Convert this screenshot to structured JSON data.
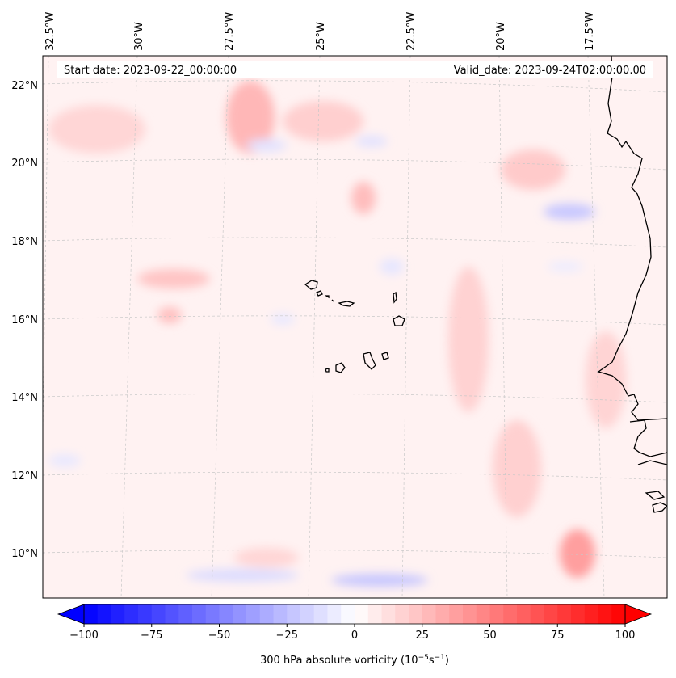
{
  "header": {
    "start_date": "Start date: 2023-09-22_00:00:00",
    "valid_date": "Valid_date: 2023-09-24T02:00:00.00"
  },
  "map": {
    "projection": "conic (curved graticule)",
    "grid": true,
    "lon_labels": [
      "32.5°W",
      "30°W",
      "27.5°W",
      "25°W",
      "22.5°W",
      "20°W",
      "17.5°W"
    ],
    "lat_labels": [
      "22°N",
      "20°N",
      "18°N",
      "16°N",
      "14°N",
      "12°N",
      "10°N"
    ],
    "features": [
      "Cape Verde islands",
      "West African coastline"
    ]
  },
  "colorbar": {
    "label": "300 hPa absolute vorticity (10",
    "label_exp1": "−5",
    "label_mid": "s",
    "label_exp2": "−1",
    "label_end": ")",
    "ticks": [
      "−100",
      "−75",
      "−50",
      "−25",
      "0",
      "25",
      "50",
      "75",
      "100"
    ],
    "range": [
      -100,
      100
    ],
    "colormap": "bwr",
    "extend": "both",
    "colors": {
      "min": "#0000ff",
      "mid": "#ffffff",
      "max": "#ff0000"
    }
  }
}
